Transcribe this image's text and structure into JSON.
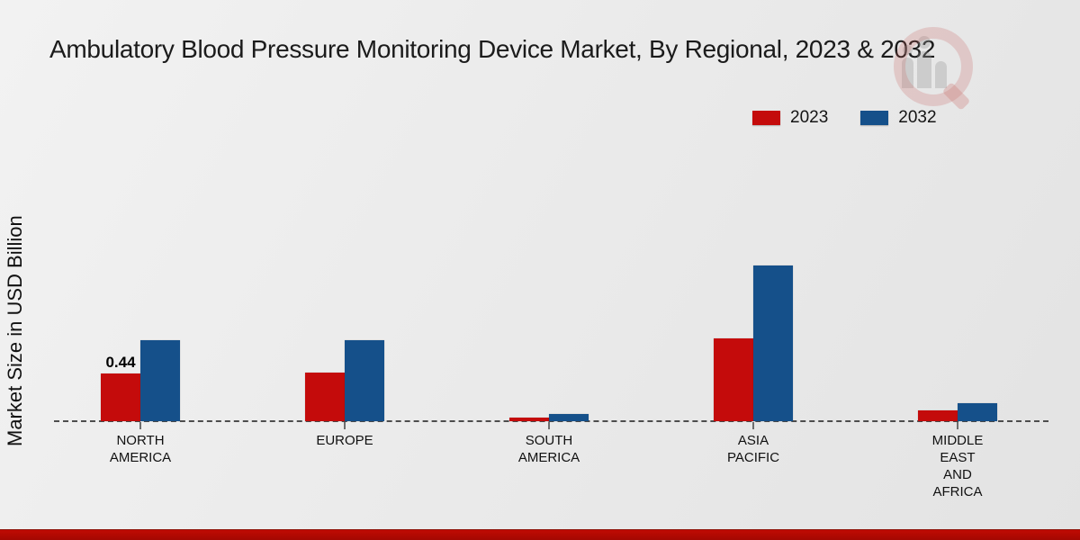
{
  "page": {
    "background_tone": "#ececec"
  },
  "watermark": {
    "name": "market-research-magnifier-logo"
  },
  "footer": {
    "bar_color": "#b50d05"
  },
  "legend": {
    "items": [
      "2023",
      "2032"
    ]
  },
  "chart_data": {
    "type": "bar",
    "title": "Ambulatory Blood Pressure Monitoring Device Market, By Regional, 2023 & 2032",
    "xlabel": "",
    "ylabel": "Market Size in USD Billion",
    "categories": [
      "NORTH AMERICA",
      "EUROPE",
      "SOUTH AMERICA",
      "ASIA PACIFIC",
      "MIDDLE EAST AND AFRICA"
    ],
    "category_label_lines": [
      [
        "NORTH",
        "AMERICA"
      ],
      [
        "EUROPE"
      ],
      [
        "SOUTH",
        "AMERICA"
      ],
      [
        "ASIA",
        "PACIFIC"
      ],
      [
        "MIDDLE",
        "EAST",
        "AND",
        "AFRICA"
      ]
    ],
    "series": [
      {
        "name": "2023",
        "color": "#c40b0b",
        "values": [
          0.44,
          0.45,
          0.03,
          0.77,
          0.1
        ]
      },
      {
        "name": "2032",
        "color": "#15508a",
        "values": [
          0.75,
          0.75,
          0.07,
          1.44,
          0.17
        ]
      }
    ],
    "value_labels": [
      {
        "category_index": 0,
        "series_index": 0,
        "text": "0.44"
      }
    ],
    "ylim": [
      0,
      1.6
    ],
    "grid": false,
    "baseline_style": "dashed",
    "legend_position": "top-right",
    "units": "USD Billion"
  }
}
